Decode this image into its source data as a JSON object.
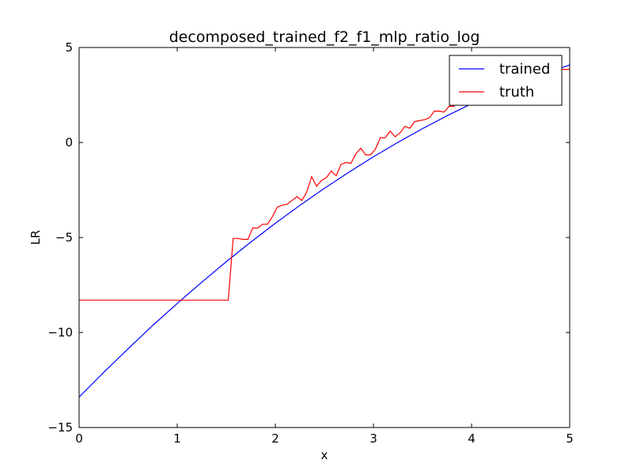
{
  "chart_data": {
    "type": "line",
    "title": "decomposed_trained_f2_f1_mlp_ratio_log",
    "xlabel": "x",
    "ylabel": "LR",
    "xlim": [
      0,
      5
    ],
    "ylim": [
      -15,
      5
    ],
    "xticks": [
      0,
      1,
      2,
      3,
      4,
      5
    ],
    "xtick_labels": [
      "0",
      "1",
      "2",
      "3",
      "4",
      "5"
    ],
    "yticks": [
      5,
      0,
      -5,
      -10,
      -15
    ],
    "ytick_labels": [
      "5",
      "0",
      "−5",
      "−10",
      "−15"
    ],
    "grid": false,
    "legend_position": "top-right",
    "series": [
      {
        "name": "trained",
        "color": "#0000ff",
        "x": [
          0,
          0.25,
          0.5,
          0.75,
          1.0,
          1.25,
          1.5,
          1.75,
          2.0,
          2.25,
          2.5,
          2.75,
          3.0,
          3.25,
          3.5,
          3.75,
          4.0,
          4.25,
          4.5,
          4.75,
          5.0
        ],
        "y": [
          -13.4,
          -12.1,
          -10.85,
          -9.63,
          -8.47,
          -7.35,
          -6.27,
          -5.24,
          -4.25,
          -3.31,
          -2.41,
          -1.56,
          -0.75,
          0.01,
          0.73,
          1.41,
          2.04,
          2.62,
          3.16,
          3.64,
          4.08
        ]
      },
      {
        "name": "truth",
        "color": "#ff0000",
        "x": [
          0,
          1.52,
          1.57,
          1.62,
          1.67,
          1.72,
          1.77,
          1.82,
          1.87,
          1.92,
          1.97,
          2.02,
          2.07,
          2.12,
          2.17,
          2.22,
          2.27,
          2.32,
          2.37,
          2.42,
          2.47,
          2.52,
          2.57,
          2.62,
          2.67,
          2.72,
          2.77,
          2.82,
          2.87,
          2.92,
          2.97,
          3.02,
          3.07,
          3.12,
          3.17,
          3.22,
          3.27,
          3.32,
          3.37,
          3.42,
          3.47,
          3.52,
          3.57,
          3.62,
          3.67,
          3.72,
          3.77,
          3.82,
          3.87,
          3.92,
          3.97,
          4.02,
          4.07,
          4.12,
          4.17,
          4.22,
          4.27,
          4.32,
          4.37,
          4.42,
          4.47,
          4.52,
          4.57,
          4.62,
          4.67,
          4.72,
          4.77,
          4.82,
          4.87,
          4.92,
          5.0
        ],
        "y": [
          -8.3,
          -8.3,
          -5.05,
          -5.05,
          -5.1,
          -5.1,
          -4.5,
          -4.5,
          -4.3,
          -4.3,
          -3.9,
          -3.4,
          -3.3,
          -3.25,
          -3.05,
          -2.85,
          -3.05,
          -2.6,
          -1.8,
          -2.3,
          -2.0,
          -1.85,
          -1.5,
          -1.75,
          -1.15,
          -1.05,
          -1.1,
          -0.6,
          -0.3,
          -0.65,
          -0.65,
          -0.35,
          0.25,
          0.25,
          0.6,
          0.3,
          0.5,
          0.85,
          0.75,
          1.1,
          1.15,
          1.2,
          1.3,
          1.65,
          1.65,
          1.6,
          1.9,
          1.9,
          2.3,
          2.5,
          2.4,
          2.7,
          2.8,
          2.9,
          3.0,
          3.1,
          3.2,
          3.3,
          3.35,
          3.4,
          3.45,
          3.5,
          3.55,
          3.6,
          3.65,
          3.7,
          3.75,
          3.8,
          3.85,
          3.85,
          3.85
        ]
      }
    ]
  }
}
